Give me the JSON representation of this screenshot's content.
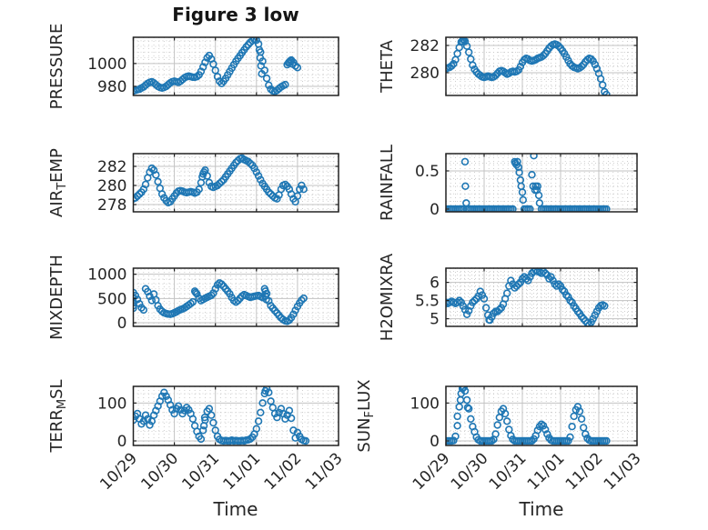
{
  "figure": {
    "title": "Figure 3 low",
    "xlabel": "Time",
    "x_tick_labels": [
      "10/29",
      "10/30",
      "10/31",
      "11/01",
      "11/02",
      "11/03"
    ],
    "colors": {
      "marker": "#1f77b4",
      "grid_major": "#c3c3c3",
      "grid_minor": "#c9c9c9",
      "spine": "#222222",
      "text": "#262626"
    }
  },
  "chart_data": [
    {
      "id": "pressure",
      "type": "scatter",
      "row": 0,
      "col": 0,
      "ylabel": "PRESSURE",
      "ylabel_parts": [
        {
          "text": "PRESSURE",
          "sub": false
        }
      ],
      "xlim": [
        0,
        5
      ],
      "ylim": [
        972,
        1023
      ],
      "yticks": [
        980,
        1000
      ],
      "ytick_labels": [
        "980",
        "1000"
      ],
      "y_minor_step": 5,
      "x_major_step": 1,
      "x_minor_step": 0.125,
      "show_x_tick_labels": false,
      "t_start": 0,
      "t_step": 0.05,
      "values": [
        976,
        976.5,
        977,
        977.5,
        978.5,
        979.5,
        981,
        982.5,
        983.5,
        984,
        983,
        981.5,
        980,
        979,
        978.5,
        979,
        980,
        981.5,
        983,
        984,
        984.5,
        984,
        983.5,
        984.5,
        986,
        987.5,
        988.5,
        989,
        988.5,
        988,
        988,
        988.5,
        990,
        993,
        997,
        1001,
        1005,
        1007,
        1004,
        999.5,
        994,
        988.5,
        984.5,
        982.5,
        984.5,
        987,
        990,
        993,
        996,
        999,
        1002,
        1004.5,
        1007,
        1009.5,
        1012,
        1014.5,
        1016.5,
        1018.5,
        1020,
        1021,
        1020.5,
        1017,
        1010,
        1002,
        994,
        987,
        981,
        977.5,
        976,
        975.5,
        976.5,
        978,
        979.5,
        980.5,
        981.5,
        999,
        1001.5,
        1003,
        1001,
        998,
        996.5,
        null,
        null,
        null,
        null
      ],
      "extra_points": [
        [
          3.07,
          1012
        ],
        [
          3.09,
          1005
        ],
        [
          3.11,
          998
        ],
        [
          3.13,
          991
        ],
        [
          3.78,
          1000.5
        ],
        [
          3.83,
          1002.5
        ],
        [
          3.88,
          999.5
        ]
      ]
    },
    {
      "id": "theta",
      "type": "scatter",
      "row": 0,
      "col": 1,
      "ylabel": "THETA",
      "ylabel_parts": [
        {
          "text": "THETA",
          "sub": false
        }
      ],
      "xlim": [
        0,
        5
      ],
      "ylim": [
        278.33,
        282.6
      ],
      "yticks": [
        280,
        282
      ],
      "ytick_labels": [
        "280",
        "282"
      ],
      "y_minor_step": 0.5,
      "x_major_step": 1,
      "x_minor_step": 0.125,
      "show_x_tick_labels": false,
      "t_start": 0,
      "t_step": 0.05,
      "values": [
        280.3,
        280.35,
        280.4,
        280.5,
        280.65,
        280.95,
        281.4,
        281.85,
        282.25,
        282.45,
        282.3,
        281.95,
        281.5,
        281.0,
        280.55,
        280.25,
        280.05,
        279.9,
        279.8,
        279.7,
        279.65,
        279.7,
        279.75,
        279.7,
        279.65,
        279.7,
        279.8,
        279.95,
        280.1,
        280.15,
        280.1,
        280.0,
        279.9,
        279.95,
        280.05,
        280.1,
        280.05,
        280.1,
        280.2,
        280.45,
        280.75,
        280.95,
        281.05,
        281.0,
        280.9,
        280.85,
        280.9,
        280.95,
        281.05,
        281.1,
        281.15,
        281.25,
        281.4,
        281.6,
        281.8,
        281.95,
        282.05,
        282.1,
        282.05,
        281.95,
        281.8,
        281.6,
        281.4,
        281.15,
        280.9,
        280.65,
        280.5,
        280.4,
        280.35,
        280.3,
        280.35,
        280.45,
        280.6,
        280.8,
        280.95,
        281.05,
        281.0,
        280.85,
        280.6,
        280.3,
        279.95,
        279.55,
        279.1,
        278.6,
        278.4
      ],
      "extra_points": [
        [
          0.43,
          282.3
        ],
        [
          0.47,
          282.4
        ]
      ]
    },
    {
      "id": "air_temp",
      "type": "scatter",
      "row": 1,
      "col": 0,
      "ylabel": "AIR_TEMP",
      "ylabel_parts": [
        {
          "text": "AIR",
          "sub": false
        },
        {
          "text": "T",
          "sub": true
        },
        {
          "text": "EMP",
          "sub": false
        }
      ],
      "xlim": [
        0,
        5
      ],
      "ylim": [
        277.24,
        283.33
      ],
      "yticks": [
        278,
        280,
        282
      ],
      "ytick_labels": [
        "278",
        "280",
        "282"
      ],
      "y_minor_step": 0.5,
      "x_major_step": 1,
      "x_minor_step": 0.125,
      "show_x_tick_labels": false,
      "t_start": 0,
      "t_step": 0.05,
      "values": [
        278.6,
        278.7,
        278.9,
        279.1,
        279.3,
        279.6,
        280.1,
        280.8,
        281.4,
        281.8,
        281.6,
        281.1,
        280.4,
        279.7,
        279.1,
        278.7,
        278.4,
        278.2,
        278.3,
        278.6,
        278.9,
        279.2,
        279.4,
        279.45,
        279.4,
        279.3,
        279.25,
        279.3,
        279.35,
        279.3,
        279.2,
        279.3,
        279.6,
        280.3,
        281.2,
        281.6,
        281.0,
        280.3,
        279.9,
        279.8,
        279.9,
        280.0,
        280.2,
        280.4,
        280.6,
        280.9,
        281.2,
        281.5,
        281.8,
        282.1,
        282.4,
        282.6,
        282.8,
        282.85,
        282.7,
        282.6,
        282.5,
        282.3,
        282.1,
        281.8,
        281.4,
        281.0,
        280.6,
        280.2,
        279.9,
        279.6,
        279.3,
        279.1,
        278.9,
        278.7,
        278.6,
        279.0,
        279.6,
        280.0,
        280.1,
        279.9,
        279.6,
        279.1,
        278.6,
        278.3,
        278.9,
        279.6,
        280.0,
        279.6,
        null
      ],
      "extra_points": [
        [
          1.68,
          280.9
        ],
        [
          1.72,
          281.4
        ]
      ]
    },
    {
      "id": "rainfall",
      "type": "scatter",
      "row": 1,
      "col": 1,
      "ylabel": "RAINFALL",
      "ylabel_parts": [
        {
          "text": "RAINFALL",
          "sub": false
        }
      ],
      "xlim": [
        0,
        5
      ],
      "ylim": [
        -0.036,
        0.726
      ],
      "yticks": [
        0,
        0.5
      ],
      "ytick_labels": [
        "0",
        "0.5"
      ],
      "y_minor_step": 0.1,
      "x_major_step": 1,
      "x_minor_step": 0.125,
      "show_x_tick_labels": false,
      "t_start": 0,
      "t_step": 0.05,
      "values": [
        0,
        0,
        0,
        0,
        0,
        0,
        0,
        0,
        0,
        0,
        0.62,
        0,
        0,
        0,
        0,
        0,
        0,
        0,
        0,
        0,
        0,
        0,
        0,
        0,
        0,
        0,
        0,
        0,
        0,
        0,
        0,
        0,
        0,
        0,
        0,
        0,
        0.62,
        0.58,
        0.55,
        0.38,
        0.22,
        0,
        0,
        0,
        0,
        0.45,
        0.7,
        0.3,
        0.3,
        0.08,
        0,
        0,
        0,
        0,
        0,
        0,
        0,
        0,
        0,
        0,
        0,
        0,
        0,
        0,
        0,
        0,
        0,
        0,
        0,
        0,
        0,
        0,
        0,
        0,
        0,
        0,
        0,
        0,
        0,
        0,
        0,
        0,
        0,
        0,
        0
      ],
      "extra_points": [
        [
          0.51,
          0.3
        ],
        [
          0.53,
          0.08
        ],
        [
          1.82,
          0.6
        ],
        [
          1.87,
          0.62
        ],
        [
          1.92,
          0.48
        ],
        [
          1.97,
          0.3
        ],
        [
          2.02,
          0.12
        ],
        [
          2.28,
          0.3
        ],
        [
          2.33,
          0.25
        ],
        [
          2.38,
          0.25
        ],
        [
          2.43,
          0.18
        ]
      ]
    },
    {
      "id": "mixdepth",
      "type": "scatter",
      "row": 2,
      "col": 0,
      "ylabel": "MIXDEPTH",
      "ylabel_parts": [
        {
          "text": "MIXDEPTH",
          "sub": false
        }
      ],
      "xlim": [
        0,
        5
      ],
      "ylim": [
        -75,
        1125
      ],
      "yticks": [
        0,
        500,
        1000
      ],
      "ytick_labels": [
        "0",
        "500",
        "1000"
      ],
      "y_minor_step": 100,
      "x_major_step": 1,
      "x_minor_step": 0.125,
      "show_x_tick_labels": false,
      "t_start": 0,
      "t_step": 0.05,
      "values": [
        620,
        560,
        480,
        390,
        310,
        265,
        700,
        640,
        545,
        460,
        590,
        470,
        350,
        280,
        235,
        205,
        190,
        180,
        175,
        185,
        205,
        225,
        250,
        270,
        285,
        305,
        335,
        365,
        395,
        430,
        650,
        595,
        505,
        455,
        480,
        505,
        525,
        545,
        565,
        610,
        700,
        780,
        820,
        795,
        750,
        700,
        650,
        595,
        520,
        455,
        425,
        455,
        505,
        550,
        580,
        560,
        540,
        525,
        535,
        545,
        555,
        560,
        540,
        520,
        700,
        600,
        450,
        350,
        300,
        250,
        200,
        150,
        100,
        65,
        40,
        30,
        55,
        105,
        175,
        255,
        335,
        405,
        465,
        505,
        null
      ],
      "extra_points": [
        [
          0,
          520
        ],
        [
          0,
          430
        ],
        [
          0,
          350
        ],
        [
          0,
          300
        ],
        [
          1.52,
          620
        ],
        [
          3.22,
          650
        ],
        [
          3.22,
          550
        ],
        [
          3.24,
          480
        ]
      ]
    },
    {
      "id": "h2omixra",
      "type": "scatter",
      "row": 2,
      "col": 1,
      "ylabel": "H2OMIXRA",
      "ylabel_parts": [
        {
          "text": "H2OMIXRA",
          "sub": false
        }
      ],
      "xlim": [
        0,
        5
      ],
      "ylim": [
        4.79,
        6.39
      ],
      "yticks": [
        5,
        5.5,
        6
      ],
      "ytick_labels": [
        "5",
        "5.5",
        "6"
      ],
      "y_minor_step": 0.1,
      "x_major_step": 1,
      "x_minor_step": 0.125,
      "show_x_tick_labels": false,
      "t_start": 0,
      "t_step": 0.05,
      "values": [
        5.45,
        5.42,
        5.45,
        5.48,
        5.45,
        5.42,
        5.45,
        5.5,
        5.45,
        5.35,
        5.25,
        5.12,
        5.22,
        5.35,
        5.45,
        5.5,
        5.55,
        5.62,
        5.75,
        5.65,
        5.55,
        5.3,
        5.1,
        4.96,
        5.05,
        5.15,
        5.2,
        5.2,
        5.25,
        5.3,
        5.4,
        5.55,
        5.7,
        5.9,
        6.05,
        5.95,
        5.85,
        5.9,
        5.95,
        6.0,
        6.1,
        6.15,
        6.1,
        6.05,
        6.15,
        6.25,
        6.3,
        6.33,
        6.3,
        6.28,
        6.25,
        6.3,
        6.25,
        6.2,
        6.1,
        6.15,
        6.05,
        5.95,
        5.9,
        5.95,
        5.9,
        5.8,
        5.75,
        5.65,
        5.6,
        5.5,
        5.45,
        5.35,
        5.28,
        5.2,
        5.14,
        5.06,
        5.0,
        4.94,
        4.88,
        4.83,
        4.9,
        5.0,
        5.1,
        5.2,
        5.3,
        5.36,
        5.38,
        5.35,
        null
      ],
      "extra_points": [
        [
          1.13,
          4.97
        ]
      ]
    },
    {
      "id": "terr_msl",
      "type": "scatter",
      "row": 3,
      "col": 0,
      "ylabel": "TERR_MSL",
      "ylabel_parts": [
        {
          "text": "TERR",
          "sub": false
        },
        {
          "text": "M",
          "sub": true
        },
        {
          "text": "SL",
          "sub": false
        }
      ],
      "xlim": [
        0,
        5
      ],
      "ylim": [
        -12,
        144
      ],
      "yticks": [
        0,
        100
      ],
      "ytick_labels": [
        "0",
        "100"
      ],
      "y_minor_step": 25,
      "x_major_step": 1,
      "x_minor_step": 0.125,
      "show_x_tick_labels": true,
      "t_start": 0,
      "t_step": 0.05,
      "values": [
        55,
        65,
        72,
        58,
        45,
        52,
        68,
        58,
        42,
        52,
        68,
        80,
        92,
        105,
        118,
        128,
        118,
        108,
        95,
        82,
        72,
        85,
        92,
        82,
        72,
        80,
        88,
        82,
        72,
        58,
        40,
        25,
        12,
        5,
        28,
        55,
        78,
        85,
        68,
        48,
        28,
        12,
        4,
        1,
        0,
        1,
        0,
        0,
        2,
        0,
        1,
        0,
        0,
        1,
        0,
        2,
        3,
        5,
        10,
        18,
        32,
        52,
        75,
        100,
        125,
        138,
        128,
        105,
        88,
        72,
        62,
        75,
        85,
        72,
        58,
        68,
        80,
        60,
        28,
        8,
        22,
        12,
        4,
        1,
        0
      ],
      "extra_points": [
        [
          1.72,
          40
        ],
        [
          1.74,
          62
        ],
        [
          3.22,
          132
        ]
      ]
    },
    {
      "id": "sun_flux",
      "type": "scatter",
      "row": 3,
      "col": 1,
      "ylabel": "SUN_FLUX",
      "ylabel_parts": [
        {
          "text": "SUN",
          "sub": false
        },
        {
          "text": "F",
          "sub": true
        },
        {
          "text": "LUX",
          "sub": false
        }
      ],
      "xlim": [
        0,
        5
      ],
      "ylim": [
        -12,
        144
      ],
      "yticks": [
        0,
        100
      ],
      "ytick_labels": [
        "0",
        "100"
      ],
      "y_minor_step": 25,
      "x_major_step": 1,
      "x_minor_step": 0.125,
      "show_x_tick_labels": true,
      "t_start": 0,
      "t_step": 0.05,
      "values": [
        0,
        0,
        0,
        0,
        1,
        12,
        40,
        90,
        125,
        140,
        132,
        108,
        85,
        58,
        38,
        24,
        10,
        3,
        0,
        0,
        0,
        0,
        0,
        0,
        0,
        4,
        18,
        42,
        62,
        78,
        85,
        72,
        52,
        30,
        14,
        4,
        0,
        0,
        0,
        0,
        0,
        0,
        0,
        0,
        0,
        0,
        5,
        14,
        28,
        38,
        44,
        40,
        30,
        18,
        8,
        2,
        0,
        0,
        0,
        0,
        0,
        0,
        0,
        0,
        0,
        10,
        38,
        65,
        82,
        90,
        78,
        58,
        35,
        18,
        7,
        2,
        0,
        0,
        0,
        0,
        0,
        0,
        0,
        0,
        0
      ],
      "extra_points": [
        [
          0.3,
          65
        ],
        [
          0.38,
          108
        ],
        [
          0.43,
          138
        ],
        [
          0.47,
          142
        ],
        [
          0.57,
          88
        ]
      ]
    }
  ]
}
